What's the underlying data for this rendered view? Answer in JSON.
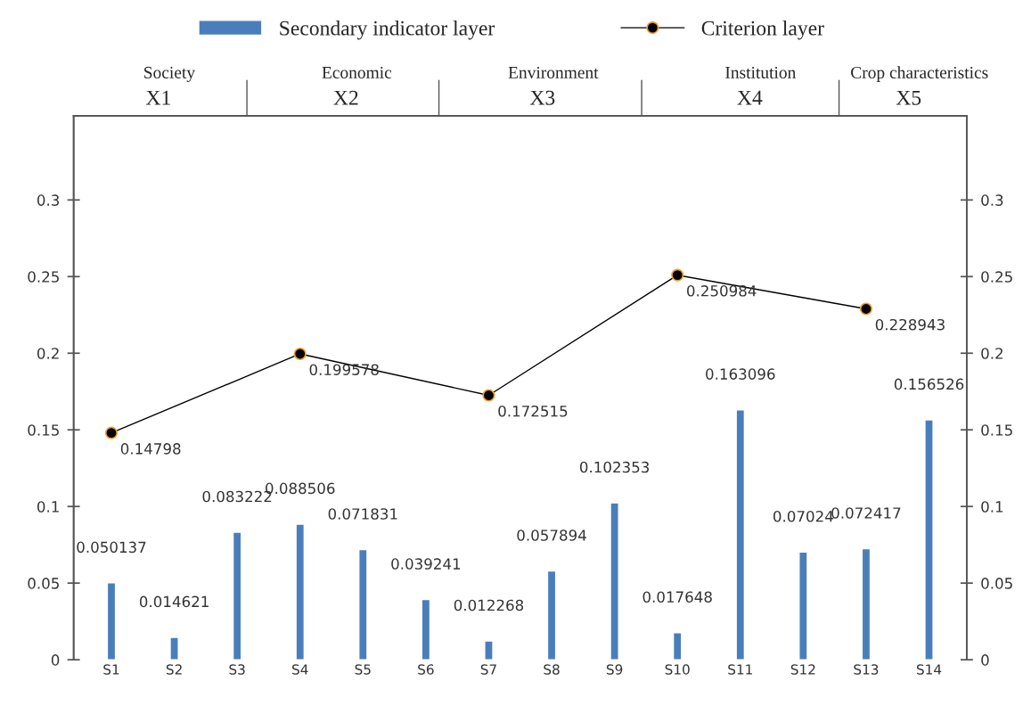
{
  "chart_data": {
    "type": "bar",
    "categories": [
      "S1",
      "S2",
      "S3",
      "S4",
      "S5",
      "S6",
      "S7",
      "S8",
      "S9",
      "S10",
      "S11",
      "S12",
      "S13",
      "S14"
    ],
    "series": [
      {
        "name": "Secondary indicator layer",
        "color": "#4a7ebb",
        "values": [
          0.050137,
          0.014621,
          0.083222,
          0.088506,
          0.071831,
          0.039241,
          0.012268,
          0.057894,
          0.102353,
          0.017648,
          0.163096,
          0.07024,
          0.072417,
          0.156526
        ]
      },
      {
        "type": "line",
        "name": "Criterion layer",
        "color": "#000000",
        "marker": "circle",
        "line_style": "solid",
        "values": [
          0.14798,
          null,
          null,
          0.199578,
          null,
          null,
          0.172515,
          null,
          null,
          0.250984,
          null,
          null,
          0.228943,
          null
        ]
      }
    ],
    "ylim": [
      0,
      0.355
    ],
    "yticks": [
      0,
      0.05,
      0.1,
      0.15,
      0.2,
      0.25,
      0.3
    ],
    "y2lim": [
      0,
      0.355
    ],
    "y2ticks": [
      0,
      0.05,
      0.1,
      0.15,
      0.2,
      0.25,
      0.3
    ],
    "annotations": [
      "Society",
      "X1",
      "Economic",
      "X2",
      "Environment",
      "X3",
      "Institution",
      "X4",
      "Crop characteristics",
      "X5"
    ],
    "legend": "top",
    "data_labels": true
  }
}
